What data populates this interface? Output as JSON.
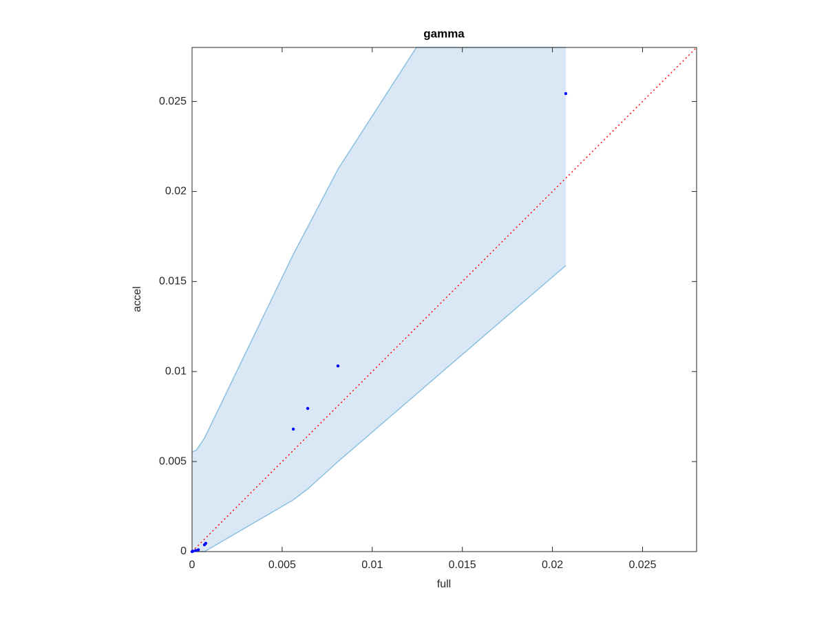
{
  "chart_data": {
    "type": "scatter",
    "title": "gamma",
    "xlabel": "full",
    "ylabel": "accel",
    "xlim": [
      0,
      0.028
    ],
    "ylim": [
      0,
      0.028
    ],
    "xticks": [
      0,
      0.005,
      0.01,
      0.015,
      0.02,
      0.025
    ],
    "yticks": [
      0,
      0.005,
      0.01,
      0.015,
      0.02,
      0.025
    ],
    "x": [
      0,
      5e-05,
      0.0002,
      0.00035,
      0.00069,
      0.00076,
      0.00562,
      0.00642,
      0.0081,
      0.02074
    ],
    "values": [
      0,
      2e-05,
      6e-05,
      0.0001,
      0.00038,
      0.00046,
      0.0068,
      0.00795,
      0.01031,
      0.02544
    ],
    "color": "#0000ff",
    "band": {
      "x": [
        0,
        0.00023,
        0.00069,
        0.00558,
        0.00642,
        0.0081,
        0.01245,
        0.02074
      ],
      "upper": [
        0.00554,
        0.00562,
        0.0063,
        0.01643,
        0.01803,
        0.02124,
        0.028,
        0.028
      ],
      "lower": [
        0,
        0,
        0,
        0.00285,
        0.00348,
        0.005,
        0.00875,
        0.01589
      ],
      "fill": "#d9e8f4",
      "color": "#8bbfe0"
    },
    "reference_line": {
      "x": [
        0,
        0.028
      ],
      "y": [
        0,
        0.028
      ],
      "color": "#ff0000"
    }
  }
}
